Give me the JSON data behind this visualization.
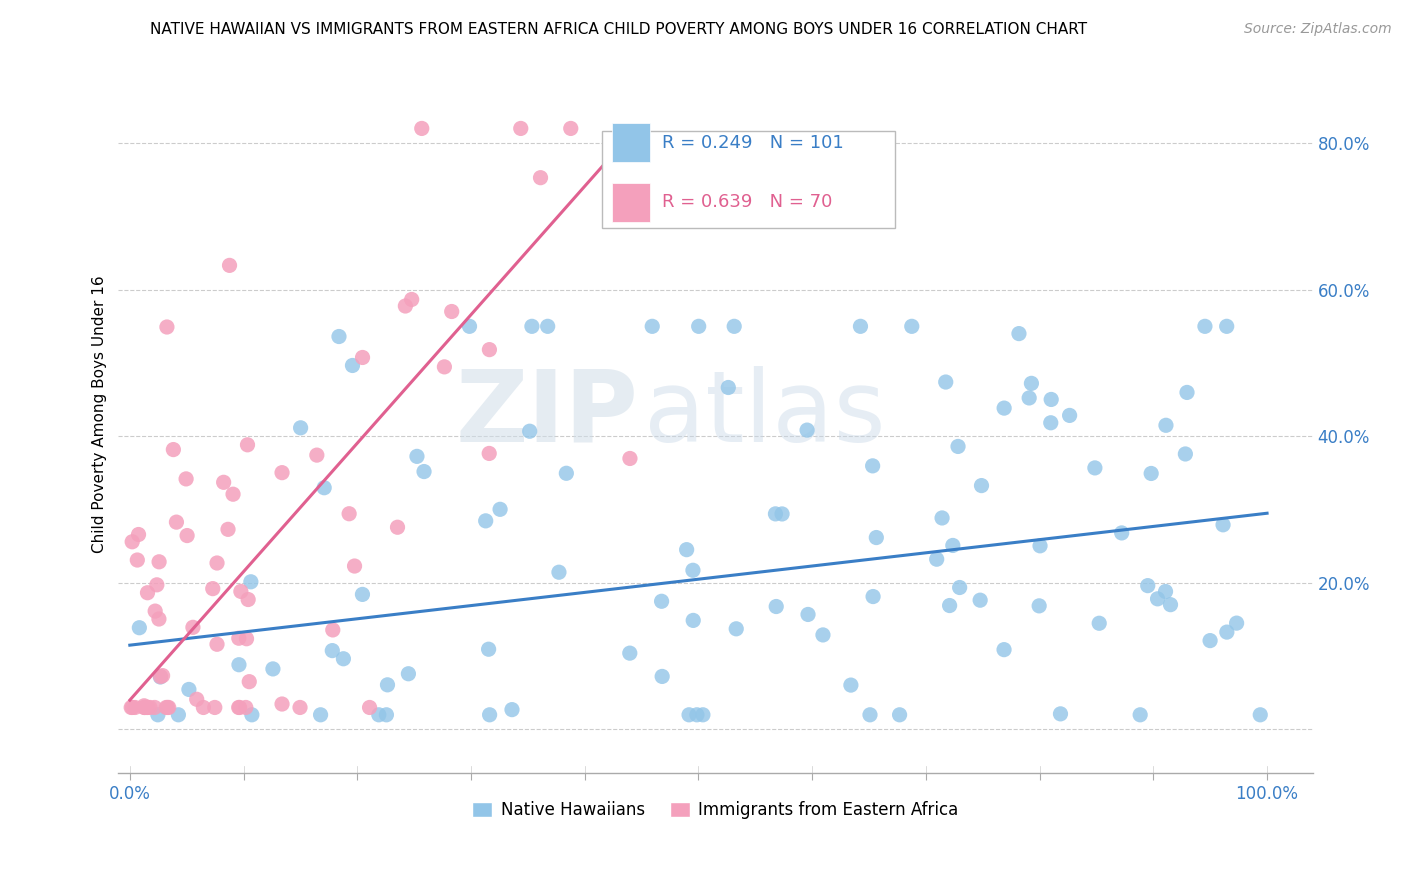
{
  "title": "NATIVE HAWAIIAN VS IMMIGRANTS FROM EASTERN AFRICA CHILD POVERTY AMONG BOYS UNDER 16 CORRELATION CHART",
  "source": "Source: ZipAtlas.com",
  "ylabel": "Child Poverty Among Boys Under 16",
  "blue_R": 0.249,
  "blue_N": 101,
  "pink_R": 0.639,
  "pink_N": 70,
  "blue_color": "#92C5E8",
  "pink_color": "#F4A0BC",
  "blue_line_color": "#3A7EC6",
  "pink_line_color": "#E06090",
  "legend_blue": "Native Hawaiians",
  "legend_pink": "Immigrants from Eastern Africa",
  "watermark_zip": "ZIP",
  "watermark_atlas": "atlas",
  "xlim": [
    -0.01,
    1.04
  ],
  "ylim": [
    -0.06,
    0.92
  ],
  "y_ticks": [
    0.0,
    0.2,
    0.4,
    0.6,
    0.8
  ],
  "y_tick_labels": [
    "",
    "20.0%",
    "40.0%",
    "60.0%",
    "80.0%"
  ],
  "x_ticks": [
    0.0,
    0.1,
    0.2,
    0.3,
    0.4,
    0.5,
    0.6,
    0.7,
    0.8,
    0.9,
    1.0
  ],
  "x_tick_labels": [
    "0.0%",
    "",
    "",
    "",
    "",
    "",
    "",
    "",
    "",
    "",
    "100.0%"
  ],
  "blue_line_x": [
    0.0,
    1.0
  ],
  "blue_line_y": [
    0.115,
    0.295
  ],
  "pink_line_x": [
    0.0,
    0.445
  ],
  "pink_line_y": [
    0.04,
    0.82
  ]
}
